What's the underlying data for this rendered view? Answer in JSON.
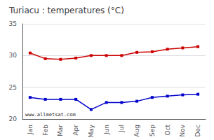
{
  "chart_data": {
    "type": "line",
    "title": "Turiacu : temperatures (°C)",
    "categories": [
      "Jan",
      "Feb",
      "Mar",
      "Apr",
      "May",
      "Jun",
      "Jul",
      "Aug",
      "Sep",
      "Oct",
      "Nov",
      "Dec"
    ],
    "series": [
      {
        "color": "#cc0000",
        "marker": "square",
        "values": [
          30.4,
          29.5,
          29.4,
          29.6,
          30.0,
          30.0,
          30.0,
          30.5,
          30.6,
          31.0,
          31.2,
          31.4
        ]
      },
      {
        "color": "#0000cc",
        "marker": "square",
        "values": [
          23.4,
          23.1,
          23.1,
          23.1,
          21.5,
          22.6,
          22.6,
          22.8,
          23.4,
          23.6,
          23.8,
          23.9
        ]
      }
    ],
    "annotations": [
      "www.allmetsat.com"
    ],
    "ylim": [
      20,
      35
    ],
    "yticks": [
      20,
      25,
      30,
      35
    ],
    "grid": true
  }
}
